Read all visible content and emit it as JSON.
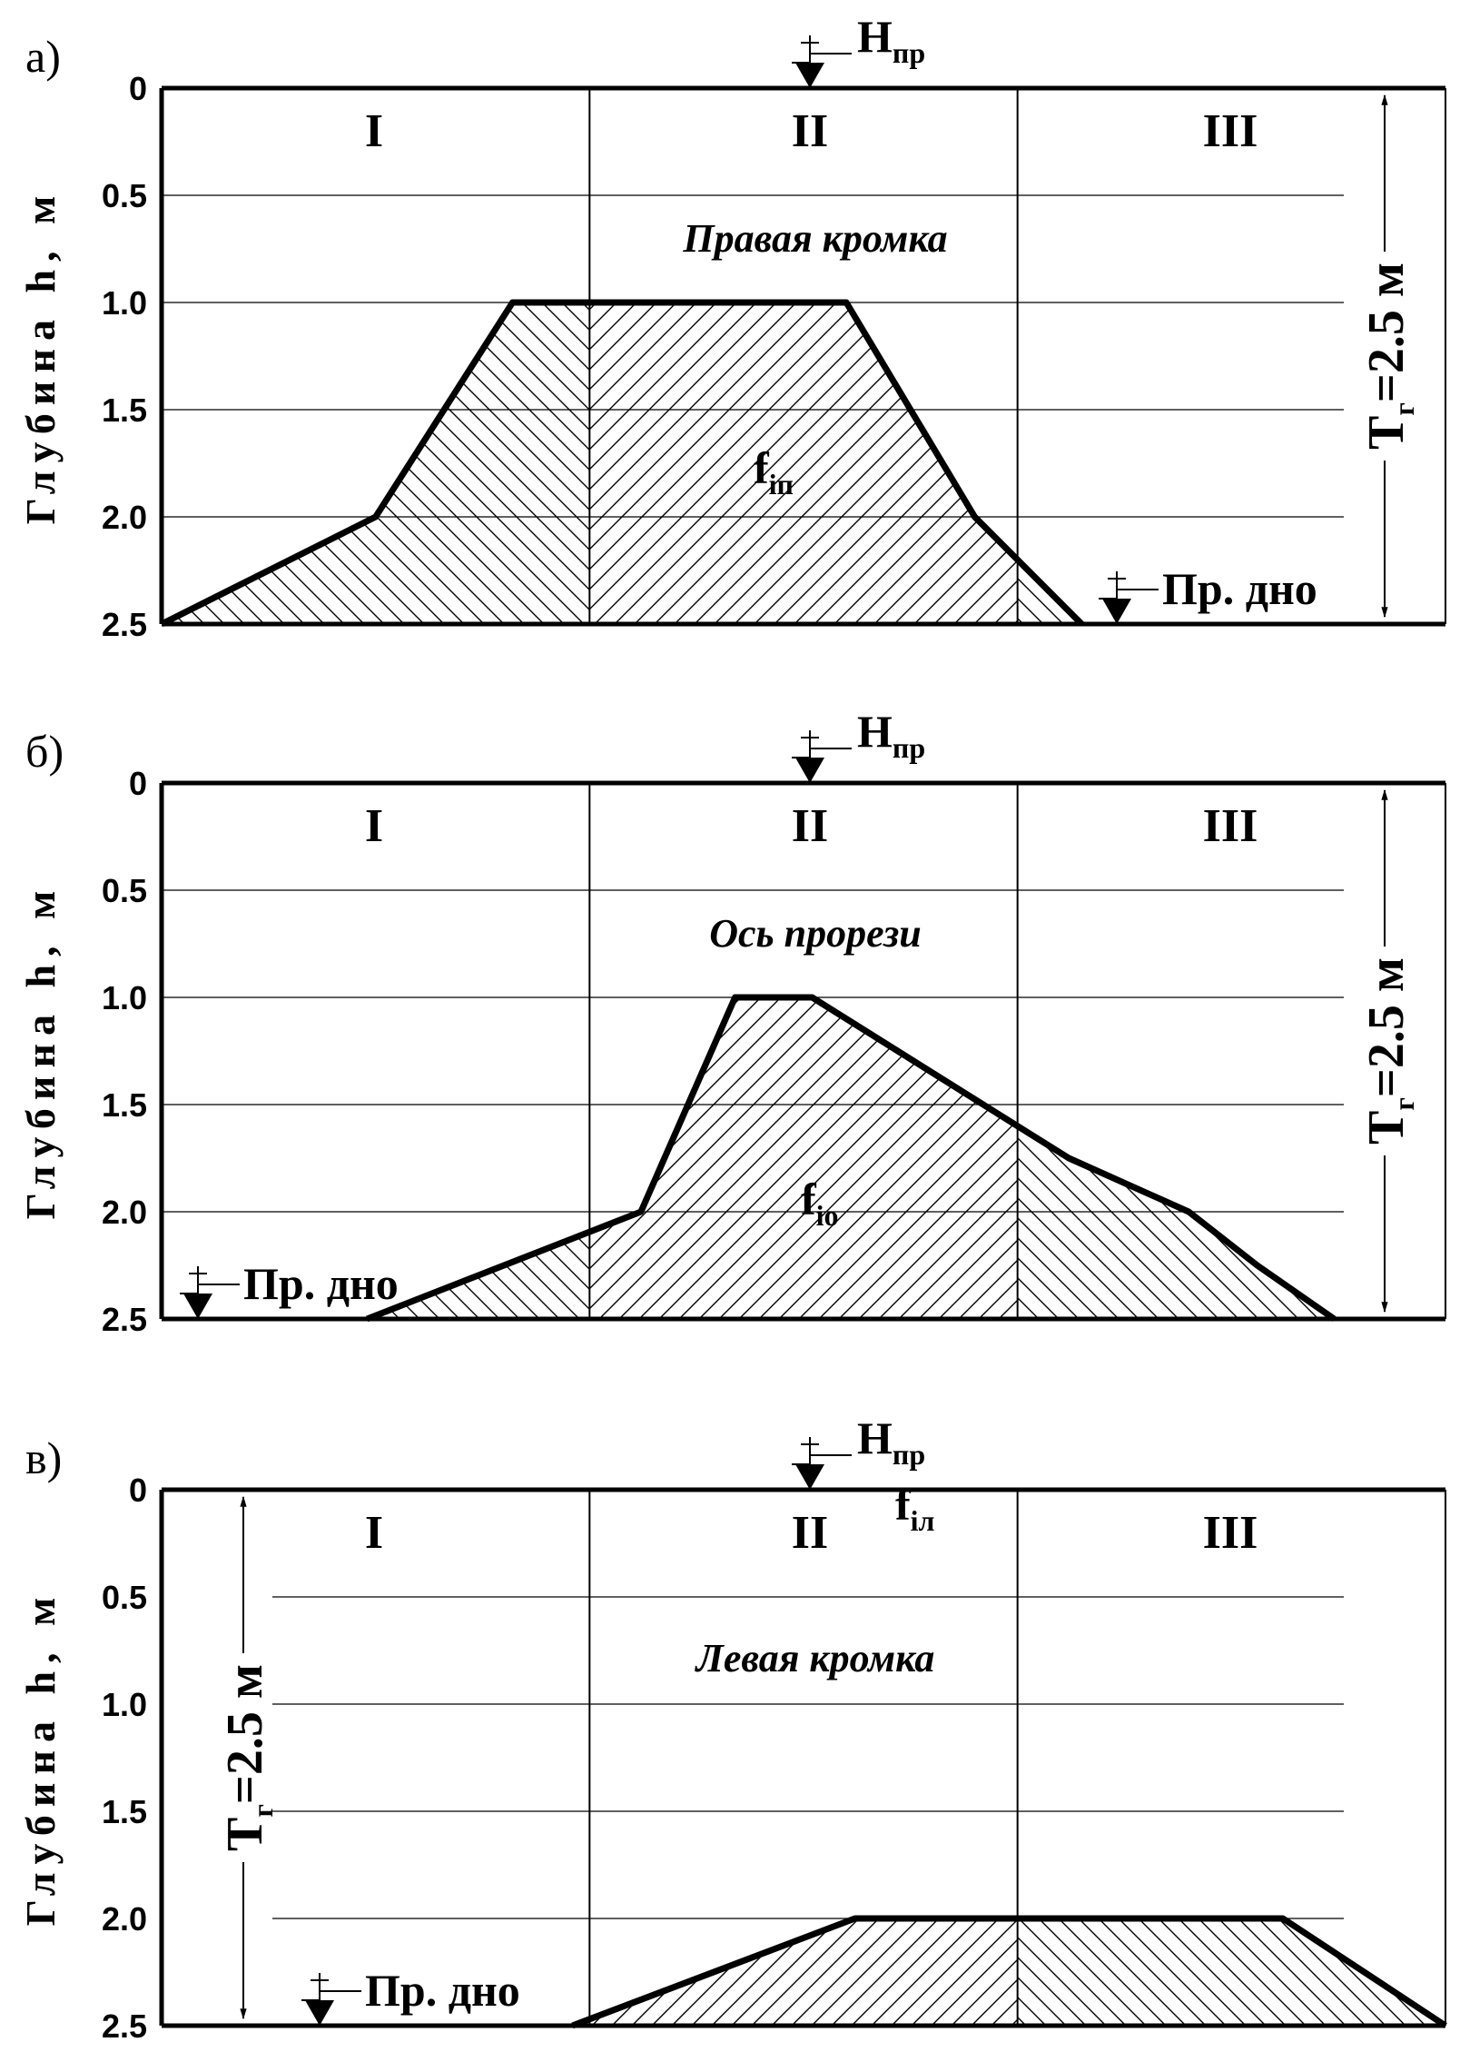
{
  "common": {
    "y_axis_label": "Глубина  h, м",
    "zones": [
      "I",
      "II",
      "III"
    ],
    "water_level_main": "Н",
    "water_level_sub": "пр",
    "bottom_label": "Пр. дно",
    "depth_main": "Т",
    "depth_sub": "г",
    "depth_value": "=2.5 м",
    "y_ticks": [
      "0",
      "0.5",
      "1.0",
      "1.5",
      "2.0",
      "2.5"
    ]
  },
  "panels": [
    {
      "letter": "а)",
      "title": "Правая кромка",
      "area_main": "f",
      "area_sub": "iп",
      "depth_side": "right"
    },
    {
      "letter": "б)",
      "title": "Ось прорези",
      "area_main": "f",
      "area_sub": "iо",
      "depth_side": "right"
    },
    {
      "letter": "в)",
      "title": "Левая кромка",
      "area_main": "f",
      "area_sub": "iл",
      "depth_side": "left"
    }
  ],
  "chart_data": [
    {
      "type": "area",
      "panel": "а)",
      "y_unit": "m",
      "ylim": [
        0,
        2.5
      ],
      "y_inverted": true,
      "x_range": [
        0,
        3
      ],
      "profile": [
        [
          0.0,
          2.5
        ],
        [
          0.5,
          2.0
        ],
        [
          0.82,
          1.0
        ],
        [
          1.6,
          1.0
        ],
        [
          1.9,
          2.0
        ],
        [
          2.15,
          2.5
        ]
      ]
    },
    {
      "type": "area",
      "panel": "б)",
      "y_unit": "m",
      "ylim": [
        0,
        2.5
      ],
      "y_inverted": true,
      "x_range": [
        0,
        3
      ],
      "profile": [
        [
          0.48,
          2.5
        ],
        [
          1.12,
          2.0
        ],
        [
          1.34,
          1.0
        ],
        [
          1.52,
          1.0
        ],
        [
          2.12,
          1.75
        ],
        [
          2.4,
          2.0
        ],
        [
          2.56,
          2.25
        ],
        [
          2.74,
          2.5
        ]
      ]
    },
    {
      "type": "area",
      "panel": "в)",
      "y_unit": "m",
      "ylim": [
        0,
        2.5
      ],
      "y_inverted": true,
      "x_range": [
        0,
        3
      ],
      "profile": [
        [
          0.96,
          2.5
        ],
        [
          1.62,
          2.0
        ],
        [
          2.62,
          2.0
        ],
        [
          3.0,
          2.5
        ]
      ]
    }
  ]
}
